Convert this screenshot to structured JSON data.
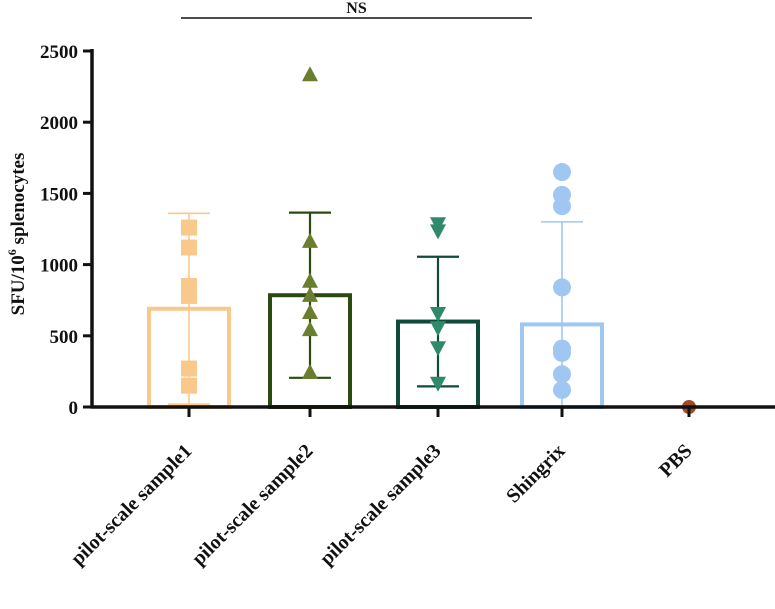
{
  "chart_data": {
    "type": "bar",
    "title": "",
    "xlabel": "",
    "ylabel": "SFU/10",
    "ylabel_superscript": "6",
    "ylabel_suffix": " splenocytes",
    "ylim": [
      0,
      2500
    ],
    "yticks": [
      0,
      500,
      1000,
      1500,
      2000,
      2500
    ],
    "significance": {
      "label": "NS",
      "from": "pilot-scale sample1",
      "to": "Shingrix"
    },
    "categories": [
      "pilot-scale sample1",
      "pilot-scale sample2",
      "pilot-scale sample3",
      "Shingrix",
      "PBS"
    ],
    "series": [
      {
        "name": "pilot-scale sample1",
        "mean": 690,
        "sd": 670,
        "color": "#f8c98b",
        "fill": "#f8c98b",
        "marker": "square",
        "points": [
          150,
          270,
          780,
          850,
          1120,
          1260
        ]
      },
      {
        "name": "pilot-scale sample2",
        "mean": 785,
        "sd": 580,
        "color": "#2b4a0f",
        "fill": "#6b7d2f",
        "marker": "triangle-up",
        "points": [
          240,
          540,
          660,
          780,
          880,
          1160,
          2330
        ]
      },
      {
        "name": "pilot-scale sample3",
        "mean": 600,
        "sd": 455,
        "color": "#0f4a3a",
        "fill": "#2f8a6a",
        "marker": "triangle-down",
        "points": [
          170,
          420,
          560,
          660,
          1240,
          1290
        ]
      },
      {
        "name": "Shingrix",
        "mean": 580,
        "sd": 720,
        "color": "#9fc7f2",
        "fill": "#9fc7f2",
        "marker": "circle",
        "points": [
          120,
          230,
          380,
          410,
          840,
          1410,
          1490,
          1650
        ]
      },
      {
        "name": "PBS",
        "mean": 0,
        "sd": 0,
        "color": "#a04a2a",
        "fill": "#a04a2a",
        "marker": "circle",
        "points": [
          0
        ]
      }
    ]
  }
}
